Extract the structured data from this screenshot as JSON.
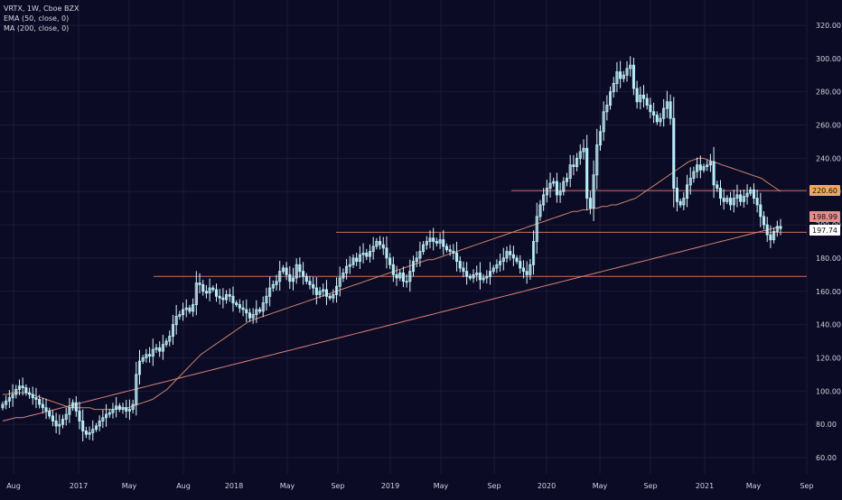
{
  "header": {
    "symbol_line": "VRTX, 1W, Cboe BZX",
    "ema_line": "EMA (50, close, 0)",
    "ma_line": "MA (200, close, 0)"
  },
  "colors": {
    "background": "#0b0b26",
    "grid": "#1b1b3a",
    "candle_body": "#b6ecf7",
    "candle_wick": "#d8f4fa",
    "ema_line": "#c9846a",
    "ma_line": "#d98476",
    "hline": "#c4715e",
    "axis_text": "#d2d2dc",
    "badge_orange": "#f0a860",
    "badge_red": "#e88a8a",
    "badge_white": "#ffffff"
  },
  "chart_data": {
    "type": "candlestick",
    "title": "VRTX, 1W, Cboe BZX",
    "interval": "1W",
    "x_ticks": [
      "Aug",
      "2017",
      "May",
      "Aug",
      "2018",
      "May",
      "Sep",
      "2019",
      "May",
      "Sep",
      "2020",
      "May",
      "Sep",
      "2021",
      "May",
      "Sep"
    ],
    "y_ticks": [
      60,
      80,
      100,
      120,
      140,
      160,
      180,
      200,
      220,
      240,
      260,
      280,
      300,
      320
    ],
    "ylim": [
      52,
      330
    ],
    "grid": true,
    "price_labels": [
      {
        "value": 220.6,
        "text": "220.60",
        "kind": "horizontal-line"
      },
      {
        "value": 198.99,
        "text": "198.99",
        "kind": "ma-200"
      },
      {
        "value": 197.74,
        "text": "197.74",
        "kind": "last-price"
      }
    ],
    "horizontal_lines": [
      {
        "value": 220.6,
        "start_label": "2020 Q1"
      },
      {
        "value": 195.5,
        "start_label": "Sep 2018"
      },
      {
        "value": 169,
        "start_label": "Jul 2017"
      }
    ],
    "weekly_closes": [
      92,
      94,
      96,
      98,
      101,
      103,
      102,
      99,
      98,
      96,
      95,
      92,
      90,
      88,
      85,
      82,
      79,
      80,
      83,
      86,
      90,
      93,
      88,
      82,
      76,
      74,
      75,
      77,
      79,
      82,
      84,
      86,
      87,
      89,
      91,
      89,
      90,
      88,
      89,
      92,
      110,
      118,
      120,
      122,
      121,
      125,
      126,
      124,
      128,
      130,
      133,
      140,
      145,
      146,
      149,
      150,
      148,
      152,
      165,
      164,
      160,
      159,
      162,
      161,
      157,
      156,
      155,
      158,
      157,
      153,
      152,
      150,
      149,
      147,
      144,
      146,
      149,
      148,
      153,
      157,
      162,
      164,
      166,
      172,
      174,
      170,
      166,
      168,
      176,
      172,
      169,
      166,
      164,
      162,
      158,
      160,
      161,
      157,
      156,
      158,
      163,
      168,
      171,
      175,
      176,
      180,
      178,
      182,
      183,
      181,
      184,
      187,
      190,
      188,
      186,
      180,
      176,
      170,
      168,
      171,
      166,
      166,
      172,
      178,
      180,
      184,
      188,
      190,
      192,
      190,
      189,
      191,
      187,
      185,
      184,
      183,
      178,
      174,
      172,
      169,
      168,
      170,
      171,
      167,
      168,
      169,
      172,
      174,
      176,
      178,
      180,
      184,
      182,
      180,
      178,
      174,
      172,
      170,
      176,
      190,
      205,
      212,
      218,
      222,
      225,
      226,
      218,
      220,
      226,
      228,
      236,
      235,
      240,
      244,
      246,
      216,
      210,
      230,
      248,
      256,
      268,
      272,
      280,
      285,
      292,
      288,
      290,
      294,
      296,
      282,
      274,
      278,
      276,
      272,
      268,
      266,
      262,
      264,
      270,
      274,
      264,
      222,
      214,
      212,
      216,
      224,
      228,
      232,
      236,
      233,
      235,
      236,
      238,
      224,
      222,
      216,
      214,
      216,
      212,
      216,
      218,
      214,
      217,
      219,
      221,
      216,
      212,
      205,
      200,
      194,
      191,
      196,
      199,
      197.74
    ],
    "ema_50": [
      98,
      98,
      99,
      99,
      99,
      99,
      98,
      97,
      96,
      95,
      94,
      93,
      92,
      91,
      90,
      90,
      90,
      90,
      90,
      89,
      89,
      89,
      89,
      89,
      90,
      90,
      90,
      91,
      92,
      93,
      94,
      95,
      97,
      99,
      101,
      104,
      107,
      110,
      113,
      116,
      119,
      122,
      124,
      126,
      128,
      130,
      132,
      134,
      136,
      138,
      140,
      142,
      143,
      144,
      145,
      146,
      147,
      148,
      149,
      150,
      151,
      152,
      153,
      154,
      155,
      156,
      157,
      158,
      159,
      160,
      161,
      162,
      163,
      164,
      165,
      166,
      167,
      168,
      169,
      170,
      171,
      172,
      173,
      174,
      175,
      176,
      177,
      178,
      179,
      179,
      180,
      181,
      182,
      183,
      184,
      185,
      186,
      187,
      188,
      189,
      190,
      191,
      192,
      193,
      194,
      195,
      196,
      197,
      198,
      199,
      200,
      201,
      202,
      203,
      204,
      205,
      206,
      207,
      208,
      208,
      209,
      209,
      210,
      210,
      211,
      211,
      212,
      212,
      213,
      214,
      215,
      216,
      218,
      220,
      222,
      224,
      226,
      228,
      230,
      232,
      234,
      236,
      238,
      239,
      240,
      240,
      239,
      238,
      237,
      236,
      235,
      234,
      233,
      232,
      231,
      230,
      229,
      228,
      226,
      224,
      222,
      220
    ],
    "ma_200": [
      82,
      83,
      84,
      84,
      85,
      86,
      87,
      88,
      89,
      90,
      91,
      92,
      93,
      94,
      95,
      96,
      97,
      98,
      99,
      100,
      101,
      102,
      103,
      104,
      105,
      106,
      107,
      108,
      109,
      110,
      111,
      112,
      113,
      114,
      115,
      116,
      117,
      118,
      119,
      120,
      121,
      122,
      123,
      124,
      125,
      126,
      127,
      128,
      129,
      130,
      131,
      132,
      133,
      134,
      135,
      136,
      137,
      138,
      139,
      140,
      141,
      142,
      143,
      144,
      145,
      146,
      147,
      148,
      149,
      150,
      151,
      152,
      153,
      154,
      155,
      156,
      157,
      158,
      159,
      160,
      161,
      162,
      163,
      164,
      165,
      166,
      167,
      168,
      169,
      170,
      171,
      172,
      173,
      174,
      175,
      176,
      177,
      178,
      179,
      180,
      181,
      182,
      183,
      184,
      185,
      186,
      187,
      188,
      189,
      190,
      191,
      192,
      193,
      194,
      195,
      196,
      197,
      198,
      199
    ],
    "series": [
      {
        "name": "VRTX, 1W, Cboe BZX",
        "kind": "candles"
      },
      {
        "name": "EMA (50, close, 0)",
        "kind": "line"
      },
      {
        "name": "MA (200, close, 0)",
        "kind": "line"
      }
    ]
  }
}
